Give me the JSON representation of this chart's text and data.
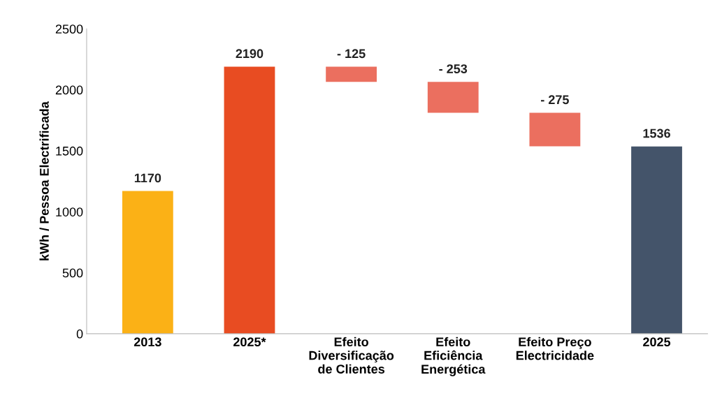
{
  "chart_data": {
    "type": "bar",
    "ylabel": "kWh / Pessoa Electrificada",
    "categories": [
      "2013",
      "2025*",
      "Efeito\nDiversificação\nde Clientes",
      "Efeito\nEficiência\nEnergética",
      "Efeito Preço\nElectricidade",
      "2025"
    ],
    "values": [
      1170,
      2190,
      -125,
      -253,
      -275,
      1536
    ],
    "base": [
      0,
      0,
      2190,
      2065,
      1812,
      0
    ],
    "colors": [
      "#fbb116",
      "#e84c22",
      "#eb6f5f",
      "#eb6f5f",
      "#eb6f5f",
      "#44546a"
    ],
    "value_labels": [
      "1170",
      "2190",
      "- 125",
      "- 253",
      "- 275",
      "1536"
    ],
    "ylim": [
      0,
      2500
    ],
    "yticks": [
      0,
      500,
      1000,
      1500,
      2000,
      2500
    ],
    "grid": false,
    "legend": false
  }
}
